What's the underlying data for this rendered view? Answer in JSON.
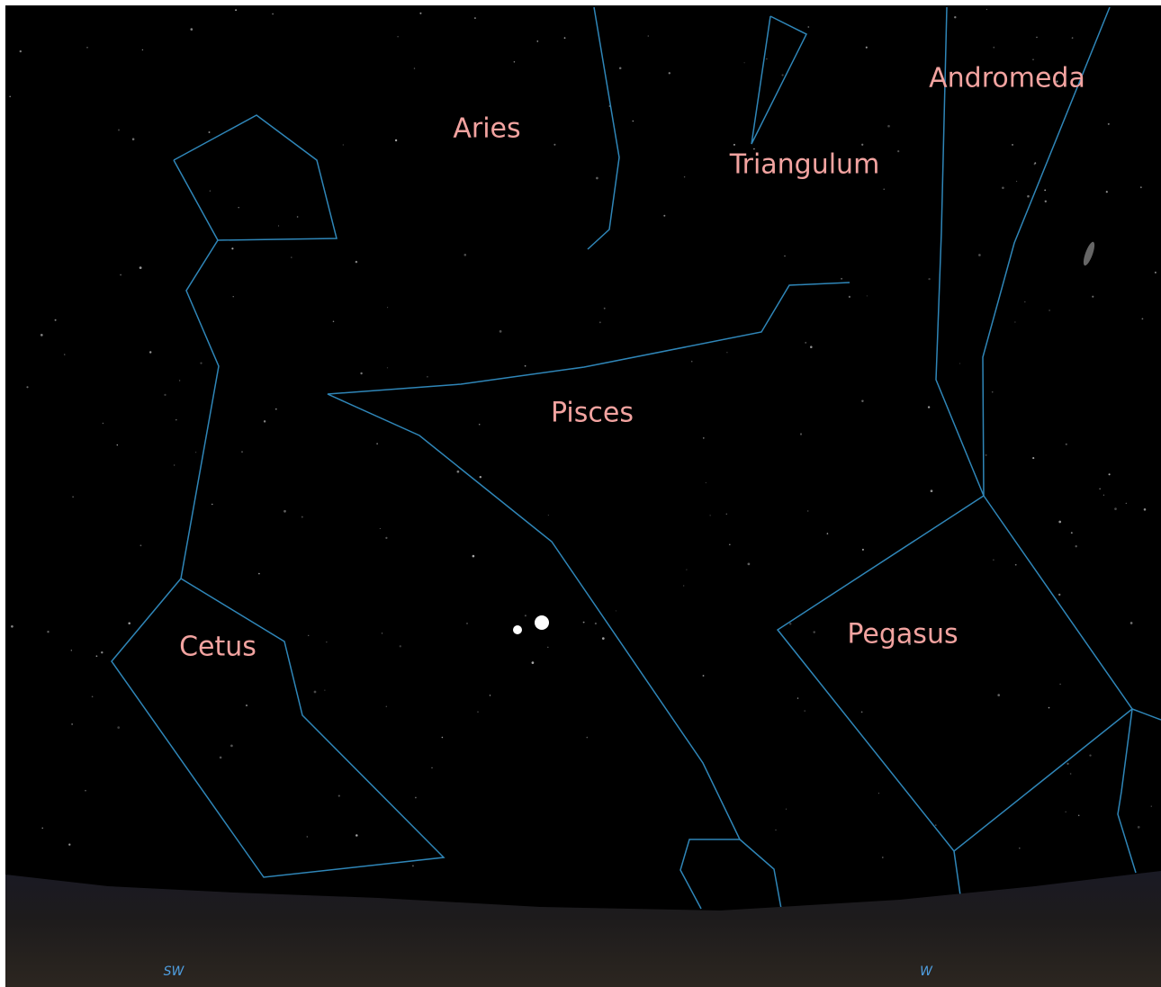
{
  "labels": {
    "aries": "Aries",
    "triangulum": "Triangulum",
    "andromeda": "Andromeda",
    "pisces": "Pisces",
    "cetus": "Cetus",
    "pegasus": "Pegasus"
  },
  "compass": {
    "southwest": "SW",
    "west": "W"
  }
}
